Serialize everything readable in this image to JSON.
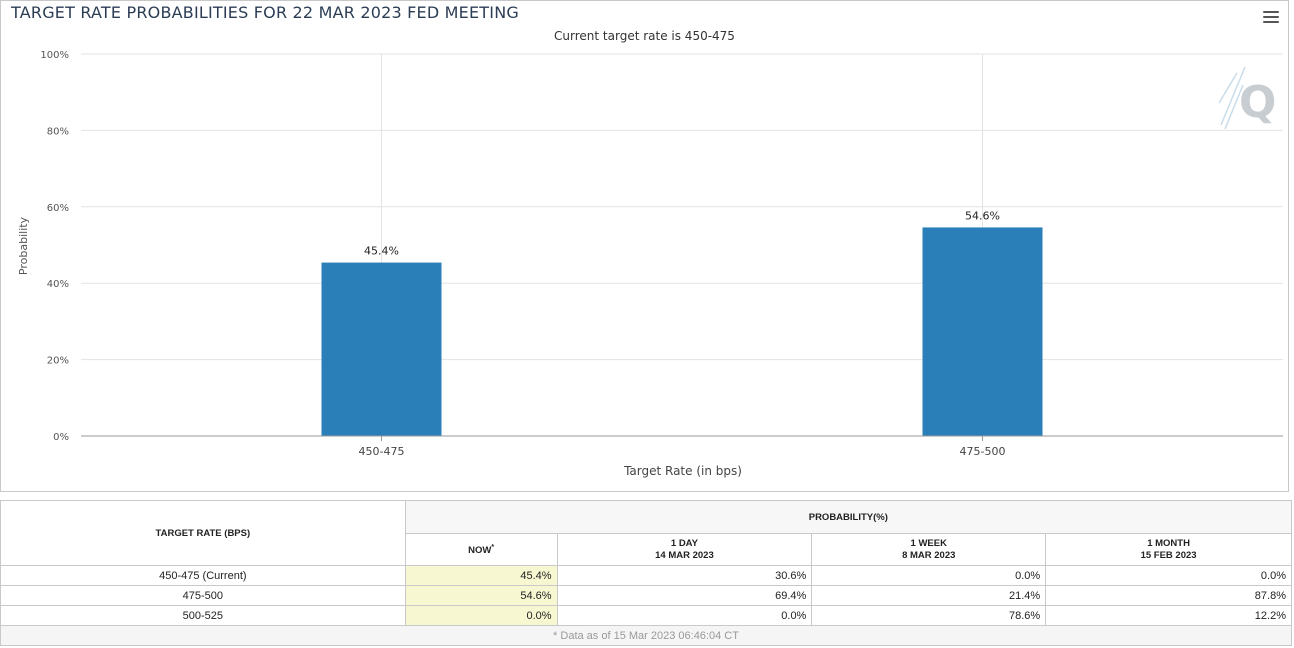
{
  "chart": {
    "title": "TARGET RATE PROBABILITIES FOR 22 MAR 2023 FED MEETING",
    "subtitle": "Current target rate is 450-475",
    "menu_icon": "hamburger-menu-icon",
    "watermark_icon": "q-logo-icon",
    "bar_color": "#2a7fb8"
  },
  "chart_data": {
    "type": "bar",
    "categories": [
      "450-475",
      "475-500"
    ],
    "values": [
      45.4,
      54.6
    ],
    "data_labels": [
      "45.4%",
      "54.6%"
    ],
    "xlabel": "Target Rate (in bps)",
    "ylabel": "Probability",
    "ylim": [
      0,
      100
    ],
    "yticks": [
      "0%",
      "20%",
      "40%",
      "60%",
      "80%",
      "100%"
    ],
    "grid": true
  },
  "table": {
    "header_rate": "TARGET RATE (BPS)",
    "header_prob": "PROBABILITY(%)",
    "columns": [
      {
        "line1": "NOW",
        "line2": "*"
      },
      {
        "line1": "1 DAY",
        "line2": "14 MAR 2023"
      },
      {
        "line1": "1 WEEK",
        "line2": "8 MAR 2023"
      },
      {
        "line1": "1 MONTH",
        "line2": "15 FEB 2023"
      }
    ],
    "rows": [
      {
        "rate": "450-475 (Current)",
        "values": [
          "45.4%",
          "30.6%",
          "0.0%",
          "0.0%"
        ]
      },
      {
        "rate": "475-500",
        "values": [
          "54.6%",
          "69.4%",
          "21.4%",
          "87.8%"
        ]
      },
      {
        "rate": "500-525",
        "values": [
          "0.0%",
          "0.0%",
          "78.6%",
          "12.2%"
        ]
      }
    ],
    "footnote": "* Data as of 15 Mar 2023 06:46:04 CT"
  }
}
